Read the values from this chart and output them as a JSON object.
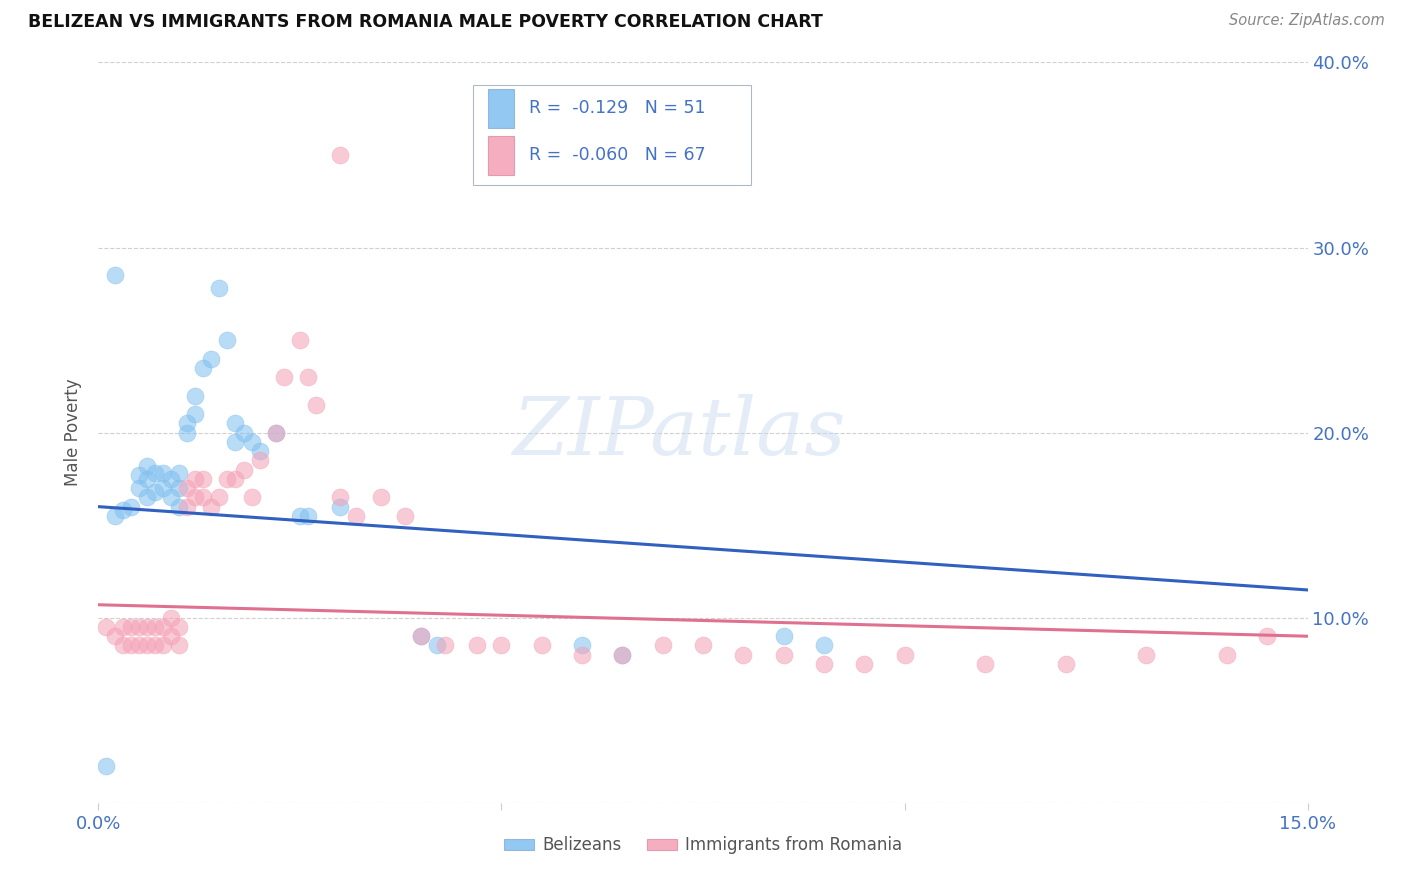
{
  "title": "BELIZEAN VS IMMIGRANTS FROM ROMANIA MALE POVERTY CORRELATION CHART",
  "source": "Source: ZipAtlas.com",
  "ylabel": "Male Poverty",
  "x_min": 0.0,
  "x_max": 0.15,
  "y_min": 0.0,
  "y_max": 0.4,
  "x_ticks": [
    0.0,
    0.05,
    0.1,
    0.15
  ],
  "x_tick_labels": [
    "0.0%",
    "",
    "",
    "15.0%"
  ],
  "y_ticks": [
    0.0,
    0.1,
    0.2,
    0.3,
    0.4
  ],
  "y_tick_labels": [
    "",
    "10.0%",
    "20.0%",
    "30.0%",
    "40.0%"
  ],
  "legend_entries": [
    {
      "label": "Belizeans",
      "color": "#7fbfef",
      "R": -0.129,
      "N": 51
    },
    {
      "label": "Immigrants from Romania",
      "color": "#f4a0b5",
      "R": -0.06,
      "N": 67
    }
  ],
  "blue_line_color": "#3060c0",
  "pink_line_color": "#e07090",
  "scatter_blue": "#7fbfef",
  "scatter_pink": "#f4a0b5",
  "watermark": "ZIPatlas",
  "blue_scatter_x": [
    0.001,
    0.002,
    0.003,
    0.004,
    0.005,
    0.005,
    0.006,
    0.006,
    0.006,
    0.007,
    0.007,
    0.008,
    0.008,
    0.009,
    0.009,
    0.01,
    0.01,
    0.01,
    0.011,
    0.011,
    0.012,
    0.012,
    0.013,
    0.014,
    0.015,
    0.016,
    0.017,
    0.017,
    0.018,
    0.019,
    0.02,
    0.022,
    0.025,
    0.026,
    0.03,
    0.04,
    0.042,
    0.06,
    0.065,
    0.085,
    0.09,
    0.002
  ],
  "blue_scatter_y": [
    0.02,
    0.155,
    0.158,
    0.16,
    0.17,
    0.177,
    0.165,
    0.175,
    0.182,
    0.168,
    0.178,
    0.17,
    0.178,
    0.165,
    0.175,
    0.16,
    0.17,
    0.178,
    0.2,
    0.205,
    0.21,
    0.22,
    0.235,
    0.24,
    0.278,
    0.25,
    0.195,
    0.205,
    0.2,
    0.195,
    0.19,
    0.2,
    0.155,
    0.155,
    0.16,
    0.09,
    0.085,
    0.085,
    0.08,
    0.09,
    0.085,
    0.285
  ],
  "pink_scatter_x": [
    0.001,
    0.002,
    0.003,
    0.003,
    0.004,
    0.004,
    0.005,
    0.005,
    0.006,
    0.006,
    0.007,
    0.007,
    0.008,
    0.008,
    0.009,
    0.009,
    0.01,
    0.01,
    0.011,
    0.011,
    0.012,
    0.012,
    0.013,
    0.013,
    0.014,
    0.015,
    0.016,
    0.017,
    0.018,
    0.019,
    0.02,
    0.022,
    0.023,
    0.025,
    0.026,
    0.027,
    0.03,
    0.032,
    0.035,
    0.038,
    0.04,
    0.043,
    0.047,
    0.05,
    0.055,
    0.06,
    0.065,
    0.07,
    0.075,
    0.08,
    0.085,
    0.09,
    0.095,
    0.1,
    0.11,
    0.12,
    0.13,
    0.14,
    0.145,
    0.03
  ],
  "pink_scatter_y": [
    0.095,
    0.09,
    0.095,
    0.085,
    0.095,
    0.085,
    0.095,
    0.085,
    0.095,
    0.085,
    0.095,
    0.085,
    0.095,
    0.085,
    0.1,
    0.09,
    0.095,
    0.085,
    0.17,
    0.16,
    0.175,
    0.165,
    0.175,
    0.165,
    0.16,
    0.165,
    0.175,
    0.175,
    0.18,
    0.165,
    0.185,
    0.2,
    0.23,
    0.25,
    0.23,
    0.215,
    0.165,
    0.155,
    0.165,
    0.155,
    0.09,
    0.085,
    0.085,
    0.085,
    0.085,
    0.08,
    0.08,
    0.085,
    0.085,
    0.08,
    0.08,
    0.075,
    0.075,
    0.08,
    0.075,
    0.075,
    0.08,
    0.08,
    0.09,
    0.35
  ],
  "blue_line_x": [
    0.0,
    0.15
  ],
  "blue_line_y": [
    0.16,
    0.115
  ],
  "pink_line_x": [
    0.0,
    0.15
  ],
  "pink_line_y": [
    0.107,
    0.09
  ],
  "tick_color": "#4472c4",
  "grid_color": "#d0d0d0",
  "background_color": "#ffffff"
}
